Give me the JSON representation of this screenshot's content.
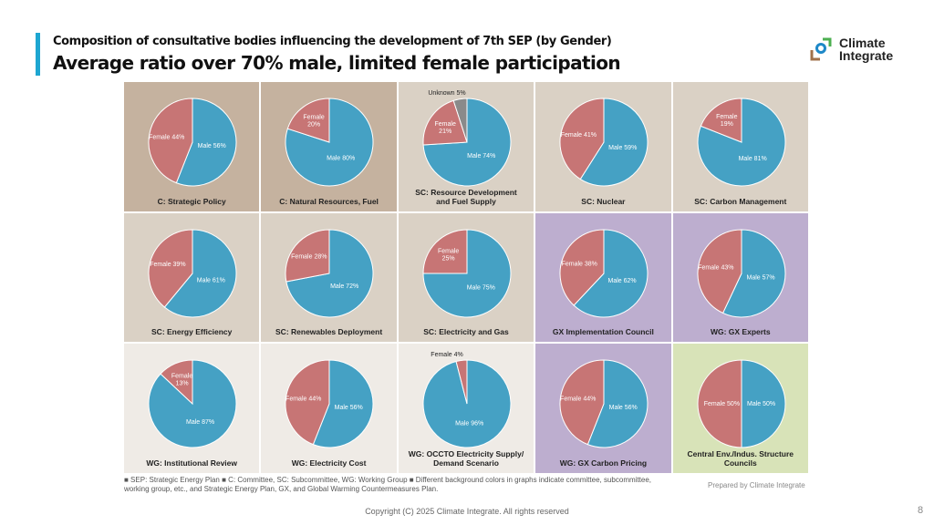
{
  "header": {
    "subtitle": "Composition of consultative bodies influencing the development of 7th SEP (by Gender)",
    "title": "Average ratio over 70% male, limited female participation"
  },
  "logo": {
    "line1": "Climate",
    "line2": "Integrate"
  },
  "colors": {
    "male": "#45a1c4",
    "female": "#c77575",
    "unknown": "#8a8a8a",
    "accent": "#1ea6d1"
  },
  "chart_data": [
    {
      "type": "pie",
      "title": "C: Strategic Policy",
      "bg": "#c5b29f",
      "slices": [
        {
          "label": "Male 56%",
          "value": 56,
          "kind": "male"
        },
        {
          "label": "Female 44%",
          "value": 44,
          "kind": "female"
        }
      ]
    },
    {
      "type": "pie",
      "title": "C: Natural Resources, Fuel",
      "bg": "#c5b29f",
      "slices": [
        {
          "label": "Male 80%",
          "value": 80,
          "kind": "male"
        },
        {
          "label": "Female\n20%",
          "value": 20,
          "kind": "female"
        }
      ]
    },
    {
      "type": "pie",
      "title": "SC: Resource Development\nand Fuel Supply",
      "bg": "#dad1c5",
      "slices": [
        {
          "label": "Male 74%",
          "value": 74,
          "kind": "male"
        },
        {
          "label": "Female\n21%",
          "value": 21,
          "kind": "female"
        },
        {
          "label": "Unknown 5%",
          "value": 5,
          "kind": "unknown",
          "outside": true
        }
      ]
    },
    {
      "type": "pie",
      "title": "SC: Nuclear",
      "bg": "#dad1c5",
      "slices": [
        {
          "label": "Male 59%",
          "value": 59,
          "kind": "male"
        },
        {
          "label": "Female 41%",
          "value": 41,
          "kind": "female"
        }
      ]
    },
    {
      "type": "pie",
      "title": "SC: Carbon Management",
      "bg": "#dad1c5",
      "slices": [
        {
          "label": "Male 81%",
          "value": 81,
          "kind": "male"
        },
        {
          "label": "Female\n19%",
          "value": 19,
          "kind": "female"
        }
      ]
    },
    {
      "type": "pie",
      "title": "SC: Energy Efficiency",
      "bg": "#dad1c5",
      "slices": [
        {
          "label": "Male 61%",
          "value": 61,
          "kind": "male"
        },
        {
          "label": "Female 39%",
          "value": 39,
          "kind": "female"
        }
      ]
    },
    {
      "type": "pie",
      "title": "SC: Renewables Deployment",
      "bg": "#dad1c5",
      "slices": [
        {
          "label": "Male 72%",
          "value": 72,
          "kind": "male"
        },
        {
          "label": "Female 28%",
          "value": 28,
          "kind": "female"
        }
      ]
    },
    {
      "type": "pie",
      "title": "SC: Electricity and Gas",
      "bg": "#dad1c5",
      "slices": [
        {
          "label": "Male 75%",
          "value": 75,
          "kind": "male"
        },
        {
          "label": "Female\n25%",
          "value": 25,
          "kind": "female"
        }
      ]
    },
    {
      "type": "pie",
      "title": "GX Implementation Council",
      "bg": "#bdaecf",
      "slices": [
        {
          "label": "Male 62%",
          "value": 62,
          "kind": "male"
        },
        {
          "label": "Female 38%",
          "value": 38,
          "kind": "female"
        }
      ]
    },
    {
      "type": "pie",
      "title": "WG: GX Experts",
      "bg": "#bdaecf",
      "slices": [
        {
          "label": "Male 57%",
          "value": 57,
          "kind": "male"
        },
        {
          "label": "Female 43%",
          "value": 43,
          "kind": "female"
        }
      ]
    },
    {
      "type": "pie",
      "title": "WG: Institutional Review",
      "bg": "#efebe6",
      "slices": [
        {
          "label": "Male 87%",
          "value": 87,
          "kind": "male"
        },
        {
          "label": "Female\n13%",
          "value": 13,
          "kind": "female"
        }
      ]
    },
    {
      "type": "pie",
      "title": "WG: Electricity Cost",
      "bg": "#efebe6",
      "slices": [
        {
          "label": "Male 56%",
          "value": 56,
          "kind": "male"
        },
        {
          "label": "Female 44%",
          "value": 44,
          "kind": "female"
        }
      ]
    },
    {
      "type": "pie",
      "title": "WG: OCCTO Electricity Supply/\nDemand Scenario",
      "bg": "#efebe6",
      "slices": [
        {
          "label": "Male 96%",
          "value": 96,
          "kind": "male"
        },
        {
          "label": "Female 4%",
          "value": 4,
          "kind": "female",
          "outside": true
        }
      ]
    },
    {
      "type": "pie",
      "title": "WG: GX Carbon Pricing",
      "bg": "#bdaecf",
      "slices": [
        {
          "label": "Male 56%",
          "value": 56,
          "kind": "male"
        },
        {
          "label": "Female 44%",
          "value": 44,
          "kind": "female"
        }
      ]
    },
    {
      "type": "pie",
      "title": "Central Env./Indus. Structure Councils",
      "bg": "#d8e3b8",
      "slices": [
        {
          "label": "Male 50%",
          "value": 50,
          "kind": "male"
        },
        {
          "label": "Female 50%",
          "value": 50,
          "kind": "female"
        }
      ]
    }
  ],
  "footer": {
    "note": "■ SEP: Strategic Energy Plan   ■ C: Committee, SC: Subcommittee, WG: Working Group   ■ Different background colors in graphs indicate committee, subcommittee, working group, etc., and Strategic Energy Plan, GX, and Global Warming Countermeasures Plan.",
    "prepared": "Prepared by Climate Integrate",
    "copyright": "Copyright (C) 2025 Climate Integrate. All rights reserved",
    "page": "8"
  }
}
